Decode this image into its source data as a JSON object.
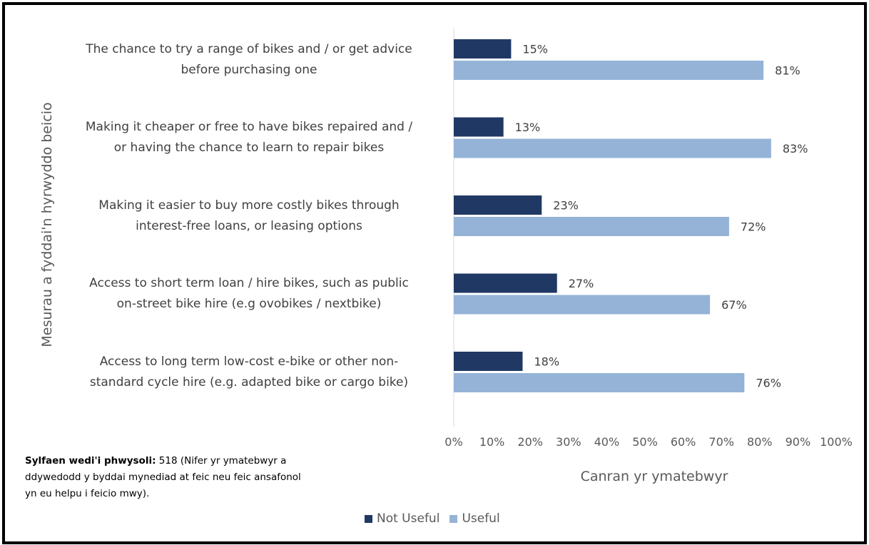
{
  "chart_data": {
    "type": "bar",
    "orientation": "horizontal",
    "categories": [
      [
        "The chance to try a range of bikes and / or get advice",
        "before purchasing one"
      ],
      [
        "Making it cheaper or free to have bikes repaired and /",
        "or having the chance to learn to repair bikes"
      ],
      [
        "Making it easier to buy more costly bikes through",
        "interest-free loans, or leasing options"
      ],
      [
        "Access to short term loan / hire bikes, such as public",
        "on-street bike hire (e.g ovobikes / nextbike)"
      ],
      [
        "Access to long term low-cost e-bike or other non-",
        "standard cycle hire (e.g. adapted bike or cargo bike)"
      ]
    ],
    "series": [
      {
        "name": "Not Useful",
        "values": [
          15,
          13,
          23,
          27,
          18
        ],
        "labels": [
          "15%",
          "13%",
          "23%",
          "27%",
          "18%"
        ],
        "color": "#203864"
      },
      {
        "name": "Useful",
        "values": [
          81,
          83,
          72,
          67,
          76
        ],
        "labels": [
          "81%",
          "83%",
          "72%",
          "67%",
          "76%"
        ],
        "color": "#95B3D7"
      }
    ],
    "xlim": [
      0,
      100
    ],
    "xticks": [
      "0%",
      "10%",
      "20%",
      "30%",
      "40%",
      "50%",
      "60%",
      "70%",
      "80%",
      "90%",
      "100%"
    ],
    "xlabel": "Canran yr ymatebwyr",
    "ylabel": "Mesurau a fyddai'n hyrwyddo beicio",
    "grid": false,
    "legend_position": "bottom"
  },
  "note": {
    "bold": "Sylfaen wedi'i phwysoli:",
    "text": " 518 (Nifer yr ymatebwyr a ddywedodd y byddai mynediad at feic neu feic ansafonol yn eu helpu i feicio mwy)."
  }
}
